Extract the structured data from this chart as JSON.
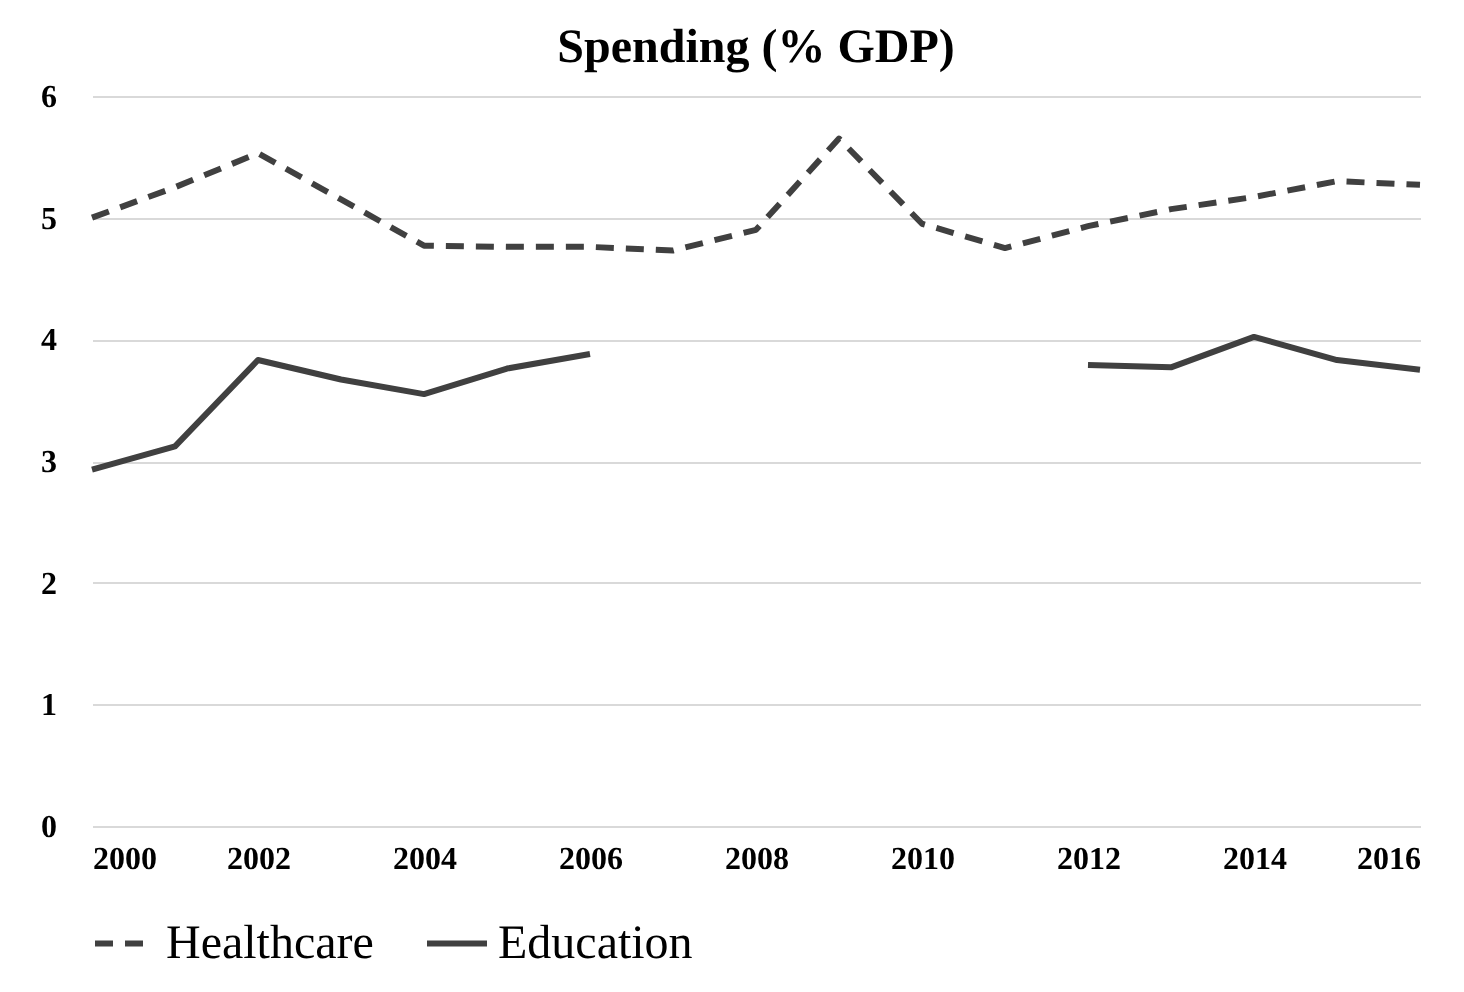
{
  "chart_data": {
    "type": "line",
    "title": "Spending (% GDP)",
    "x": [
      2000,
      2001,
      2002,
      2003,
      2004,
      2005,
      2006,
      2007,
      2008,
      2009,
      2010,
      2011,
      2012,
      2013,
      2014,
      2015,
      2016
    ],
    "series": [
      {
        "name": "Healthcare",
        "color": "#404040",
        "line_style": "dashed",
        "values": [
          5.0,
          5.25,
          5.53,
          5.15,
          4.77,
          4.76,
          4.76,
          4.73,
          4.9,
          5.65,
          4.95,
          4.75,
          4.93,
          5.07,
          5.17,
          5.3,
          5.27
        ]
      },
      {
        "name": "Education",
        "color": "#404040",
        "line_style": "solid",
        "values": [
          2.93,
          3.12,
          3.83,
          3.67,
          3.55,
          3.76,
          3.88,
          null,
          null,
          null,
          null,
          null,
          3.79,
          3.77,
          4.02,
          3.83,
          3.75
        ]
      }
    ],
    "xlim": [
      2000,
      2016
    ],
    "xticks": [
      2000,
      2002,
      2004,
      2006,
      2008,
      2010,
      2012,
      2014,
      2016
    ],
    "ylim": [
      0,
      6
    ],
    "yticks": [
      0,
      1,
      2,
      3,
      4,
      5,
      6
    ],
    "grid": "y",
    "legend": "bottom",
    "marker": "none"
  }
}
